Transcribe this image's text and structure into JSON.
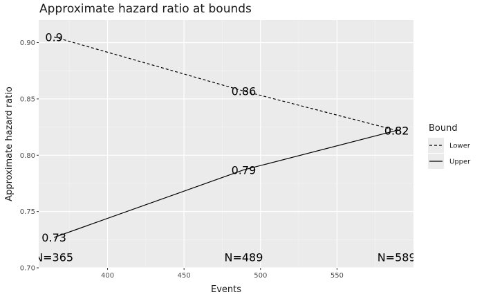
{
  "chart_data": {
    "type": "line",
    "title": "Approximate hazard ratio at bounds",
    "xlabel": "Events",
    "ylabel": "Approximate hazard ratio",
    "xlim": [
      355,
      600
    ],
    "ylim": [
      0.7,
      0.92
    ],
    "x_ticks": [
      400,
      450,
      500,
      550
    ],
    "x_tick_labels": [
      "400",
      "450",
      "500",
      "550"
    ],
    "y_ticks": [
      0.7,
      0.75,
      0.8,
      0.85,
      0.9
    ],
    "y_tick_labels": [
      "0.70",
      "0.75",
      "0.80",
      "0.85",
      "0.90"
    ],
    "grid": true,
    "legend": {
      "title": "Bound",
      "position": "right"
    },
    "series": [
      {
        "name": "Lower",
        "linetype": "dashed",
        "color": "#000000",
        "x": [
          365,
          489,
          589
        ],
        "y": [
          0.905,
          0.857,
          0.822
        ],
        "labels": [
          "0.9",
          "0.86",
          "0.82"
        ]
      },
      {
        "name": "Upper",
        "linetype": "solid",
        "color": "#000000",
        "x": [
          365,
          489,
          589
        ],
        "y": [
          0.727,
          0.787,
          0.822
        ],
        "labels": [
          "0.73",
          "0.79",
          "0.82"
        ]
      }
    ],
    "annotations": [
      {
        "text": "N=365",
        "x": 365,
        "y": 0.707
      },
      {
        "text": "N=489",
        "x": 489,
        "y": 0.707
      },
      {
        "text": "N=589",
        "x": 589,
        "y": 0.707
      }
    ],
    "colors": {
      "panel": "#ebebeb",
      "grid_major": "#ffffff",
      "grid_minor": "#f5f5f5"
    }
  }
}
